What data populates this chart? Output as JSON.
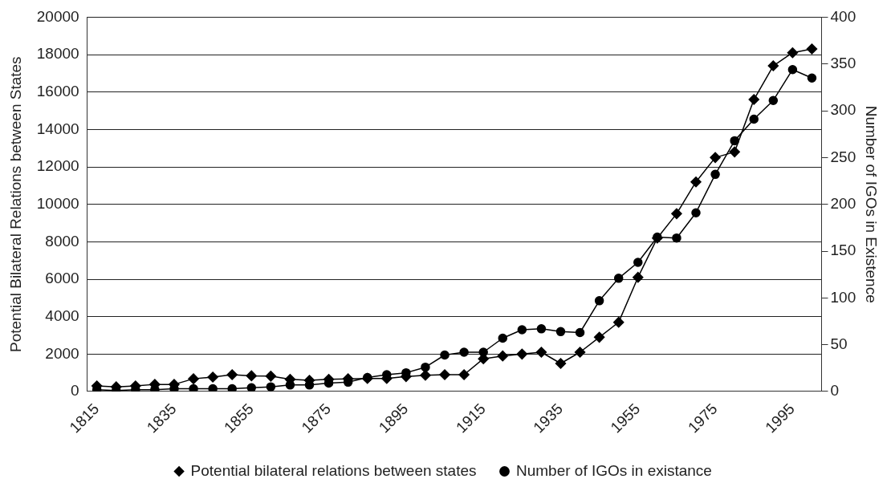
{
  "chart_data": {
    "type": "line",
    "ylabel": "Potential Bilateral Relations between States",
    "y2label": "Number of IGOs in Existence",
    "categories": [
      "1815",
      null,
      null,
      null,
      "1835",
      null,
      null,
      null,
      "1855",
      null,
      null,
      null,
      "1875",
      null,
      null,
      null,
      "1895",
      null,
      null,
      null,
      "1915",
      null,
      null,
      null,
      "1935",
      null,
      null,
      null,
      "1955",
      null,
      null,
      null,
      "1975",
      null,
      null,
      null,
      "1995",
      null
    ],
    "series": [
      {
        "name": "Potential bilateral relations between states",
        "color": "#000000",
        "marker": "diamond",
        "values": [
          300,
          250,
          300,
          380,
          380,
          680,
          770,
          900,
          840,
          820,
          650,
          600,
          650,
          680,
          700,
          700,
          800,
          870,
          900,
          900,
          1750,
          1900,
          2000,
          2100,
          1500,
          2100,
          2900,
          3700,
          6100,
          8200,
          9500,
          11200,
          12500,
          12800,
          15600,
          17400,
          18100,
          18300
        ]
      },
      {
        "name": "Number of IGOs in existance",
        "color": "#000000",
        "marker": "circle",
        "axis": "y2",
        "values": [
          2,
          1,
          2,
          2,
          3,
          3,
          3,
          3,
          4,
          5,
          7,
          7,
          9,
          10,
          15,
          18,
          20,
          26,
          39,
          42,
          42,
          57,
          66,
          67,
          64,
          63,
          97,
          121,
          138,
          165,
          164,
          191,
          232,
          268,
          291,
          311,
          344,
          335
        ]
      }
    ],
    "ylim": [
      0,
      20000
    ],
    "yticks": [
      0,
      2000,
      4000,
      6000,
      8000,
      10000,
      12000,
      14000,
      16000,
      18000,
      20000
    ],
    "y2lim": [
      0,
      400
    ],
    "y2ticks": [
      0,
      50,
      100,
      150,
      200,
      250,
      300,
      350,
      400
    ],
    "grid": "y",
    "legend": "bottom",
    "line_style": "solid"
  }
}
